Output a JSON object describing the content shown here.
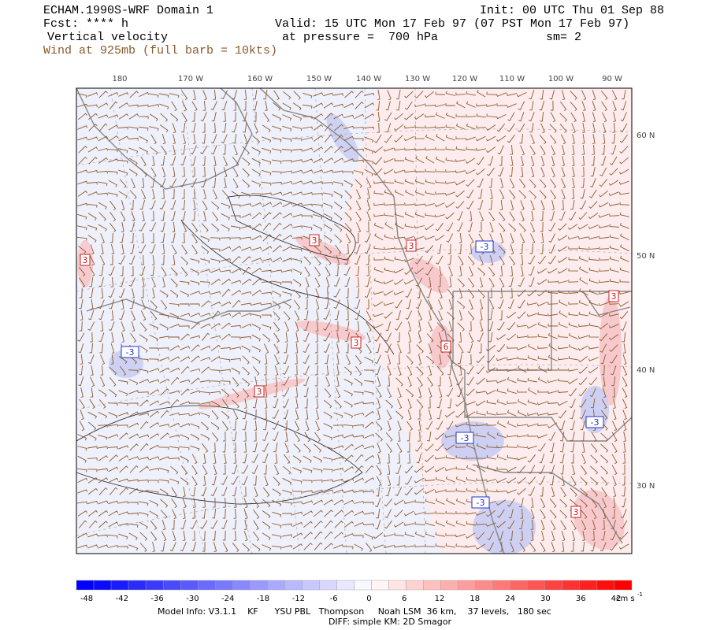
{
  "header": {
    "title": "ECHAM.1990S-WRF Domain 1",
    "forecast": "Fcst: **** h",
    "field": "Vertical velocity",
    "wind": "Wind at 925mb (full barb = 10kts)",
    "init": "Init: 00 UTC Thu 01 Sep 88",
    "valid": "Valid: 15 UTC Mon 17 Feb 97 (07 PST Mon 17 Feb 97)",
    "pressure": "at pressure =  700 hPa",
    "smoothing": "sm= 2"
  },
  "map": {
    "lon_labels": [
      "180",
      "170 W",
      "160 W",
      "150 W",
      "140 W",
      "130 W",
      "120 W",
      "110 W",
      "100 W",
      "90 W"
    ],
    "lat_labels": [
      "60 N",
      "50 N",
      "40 N",
      "30 N"
    ],
    "contour_labels": [
      "3",
      "3",
      "3",
      "3",
      "3",
      "3",
      "3",
      "6",
      "-3",
      "-3",
      "-3",
      "-3",
      "-3"
    ]
  },
  "colorbar": {
    "ticks": [
      "-48",
      "-42",
      "-36",
      "-30",
      "-24",
      "-18",
      "-12",
      "-6",
      "0",
      "6",
      "12",
      "18",
      "24",
      "30",
      "36",
      "42"
    ],
    "unit": "cm s",
    "unit_exponent": "-1",
    "low_color": "#0000ff",
    "mid_color": "#ffffff",
    "high_color": "#ff0000"
  },
  "footer": {
    "model_info": "Model Info: V3.1.1    KF      YSU PBL   Thompson     Noah LSM  36 km,    37 levels,   180 sec",
    "diff": "DIFF: simple KM: 2D Smagor"
  }
}
